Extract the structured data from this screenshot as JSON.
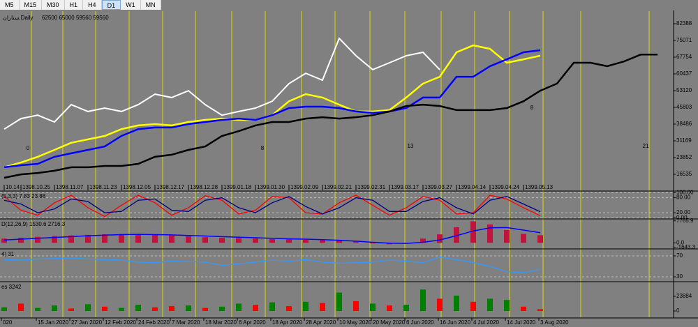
{
  "toolbar": {
    "buttons": [
      "M5",
      "M15",
      "M30",
      "H1",
      "H4",
      "D1",
      "W1",
      "MN"
    ],
    "active": 5
  },
  "time_axis": [
    "020",
    "15 Jan 2020",
    "27 Jan 2020",
    "12 Feb 2020",
    "24 Feb 2020",
    "7 Mar 2020",
    "18 Mar 2020",
    "6 Apr 2020",
    "18 Apr 2020",
    "28 Apr 2020",
    "10 May 2020",
    "20 May 2020",
    "6 Jun 2020",
    "16 Jun 2020",
    "4 Jul 2020",
    "14 Jul 2020",
    "3 Aug 2020"
  ],
  "chart_data": [
    {
      "type": "line",
      "title": "ستاران,Daily",
      "subtitle": "62500 65000 59560 59560",
      "categories": [
        "10.14",
        "1398.10.25",
        null,
        "1398.11.07",
        null,
        "1398.11.23",
        null,
        "1398.12.05",
        null,
        "1398.12.17",
        null,
        "1398.12.28",
        null,
        "1399.01.18",
        null,
        "1399.01.30",
        null,
        "1399.02.09",
        null,
        "1399.02.21",
        null,
        "1399.02.31",
        null,
        "1399.03.17",
        null,
        "1399.03.27",
        null,
        "1399.04.14",
        null,
        "1399.04.24",
        null,
        "1399.05.13",
        null,
        null,
        null,
        null,
        null,
        null,
        null,
        null
      ],
      "series": [
        {
          "color": "#ffffff",
          "values": [
            36300,
            40900,
            42400,
            39400,
            47000,
            44000,
            45500,
            44000,
            47000,
            51600,
            50100,
            53100,
            47000,
            42400,
            44000,
            45500,
            48500,
            56200,
            60700,
            57700,
            76000,
            68400,
            62300,
            65300,
            68400,
            69900,
            62300,
            null,
            null,
            null,
            null,
            null,
            null,
            null,
            null,
            null,
            null,
            null,
            null,
            null
          ]
        },
        {
          "color": "#ffff00",
          "values": [
            19600,
            21700,
            24200,
            27200,
            30300,
            31800,
            33300,
            36300,
            37900,
            38500,
            37900,
            39400,
            40300,
            40900,
            40300,
            40300,
            42400,
            48500,
            51600,
            50100,
            47000,
            44000,
            44000,
            44600,
            50100,
            56200,
            59200,
            69900,
            72900,
            71400,
            65300,
            66800,
            68400,
            null,
            null,
            null,
            null,
            null,
            null,
            null
          ]
        },
        {
          "color": "#0000ff",
          "values": [
            19600,
            20500,
            21100,
            24200,
            25700,
            27200,
            28700,
            33300,
            36300,
            37000,
            37000,
            38500,
            39400,
            40300,
            40900,
            40300,
            42400,
            45500,
            46100,
            46100,
            45500,
            44000,
            43400,
            44000,
            45500,
            50100,
            50100,
            59200,
            59200,
            63800,
            66800,
            69900,
            70800,
            null,
            null,
            null,
            null,
            null,
            null,
            null
          ]
        },
        {
          "color": "#000000",
          "values": [
            15000,
            16500,
            17100,
            18100,
            19600,
            19600,
            20200,
            20200,
            21100,
            24200,
            25100,
            27200,
            28700,
            33300,
            35400,
            37900,
            39400,
            39400,
            40900,
            41500,
            40900,
            41500,
            42400,
            44000,
            46400,
            47000,
            46400,
            44600,
            44600,
            44600,
            45500,
            48500,
            53100,
            56200,
            65300,
            65300,
            63800,
            65900,
            68900,
            68900
          ]
        }
      ],
      "annotations": [
        "0",
        "8",
        "13",
        "8",
        "21"
      ],
      "ylim": [
        9522,
        87876
      ],
      "yticks": [
        82388,
        75071,
        67754,
        60437,
        53120,
        45803,
        38486,
        31169,
        23852,
        16535
      ]
    },
    {
      "type": "line",
      "label": "(5,3,3) 7.83 23.88",
      "series": [
        {
          "color": "#ff0000",
          "values": [
            85,
            30,
            10,
            60,
            90,
            40,
            5,
            50,
            90,
            60,
            10,
            40,
            88,
            70,
            15,
            30,
            85,
            80,
            20,
            15,
            60,
            90,
            50,
            10,
            40,
            85,
            70,
            15,
            20,
            90,
            75,
            40,
            8
          ]
        },
        {
          "color": "#000080",
          "values": [
            70,
            55,
            20,
            35,
            75,
            65,
            20,
            25,
            70,
            75,
            30,
            25,
            70,
            80,
            40,
            20,
            60,
            85,
            45,
            15,
            40,
            80,
            70,
            25,
            25,
            65,
            80,
            40,
            15,
            70,
            85,
            55,
            24
          ]
        }
      ],
      "ylim": [
        -2,
        104
      ],
      "grid": true,
      "yticks": [
        {
          "value": 100,
          "label": "100.00"
        },
        {
          "value": 80,
          "label": "80.00"
        },
        {
          "value": 20,
          "label": "20.00"
        },
        {
          "value": 0,
          "label": "0.00"
        }
      ]
    },
    {
      "type": "bar",
      "label": "D(12,26,9) 1530.6 2716.3",
      "color": "#c0143c",
      "values": [
        1500,
        1800,
        2100,
        2400,
        2600,
        2800,
        3000,
        3100,
        3000,
        2800,
        2600,
        2300,
        2000,
        1800,
        1700,
        1500,
        1300,
        1200,
        1100,
        1000,
        800,
        400,
        -200,
        -500,
        -100,
        1500,
        3000,
        5500,
        7600,
        6500,
        4500,
        3200,
        2700
      ],
      "signal": {
        "color": "#0000ff",
        "values": [
          1000,
          1300,
          1600,
          1900,
          2200,
          2500,
          2700,
          2900,
          3000,
          2900,
          2800,
          2600,
          2400,
          2200,
          2000,
          1800,
          1600,
          1400,
          1300,
          1100,
          900,
          600,
          200,
          -100,
          -200,
          200,
          1000,
          2500,
          4200,
          5300,
          5400,
          4500,
          3600
        ]
      },
      "ylim": [
        -1900,
        8200
      ],
      "yticks": [
        7765.9,
        {
          "value": 0,
          "label": "0.0"
        },
        -1643.3
      ]
    },
    {
      "type": "line",
      "label": "4) 31",
      "series": [
        {
          "color": "#3399ff",
          "values": [
            63,
            62,
            64,
            65,
            66,
            64,
            63,
            62,
            58,
            57,
            60,
            59,
            58,
            52,
            55,
            58,
            62,
            60,
            63,
            58,
            56,
            57,
            58,
            62,
            60,
            57,
            68,
            63,
            57,
            50,
            40,
            38,
            44
          ]
        }
      ],
      "ylim": [
        22,
        82
      ],
      "grid": true,
      "yticks": [
        70,
        30
      ]
    },
    {
      "type": "bar",
      "label": "es 3242",
      "values": [
        6000,
        12000,
        5000,
        9000,
        4000,
        11000,
        7000,
        5000,
        10000,
        6000,
        8000,
        9000,
        5000,
        7000,
        12000,
        10000,
        14000,
        8000,
        15000,
        13000,
        30000,
        16000,
        12000,
        9000,
        10000,
        35000,
        20000,
        25000,
        15000,
        20000,
        18000,
        7000,
        3000
      ],
      "colors": [
        "#008000",
        "#ff0000",
        "#008000",
        "#008000",
        "#ff0000",
        "#008000",
        "#ff0000",
        "#008000",
        "#008000",
        "#ff0000",
        "#ff0000",
        "#008000",
        "#ff0000",
        "#008000",
        "#008000",
        "#ff0000",
        "#008000",
        "#ff0000",
        "#008000",
        "#ff0000",
        "#008000",
        "#ff0000",
        "#008000",
        "#ff0000",
        "#008000",
        "#008000",
        "#ff0000",
        "#008000",
        "#ff0000",
        "#008000",
        "#008000",
        "#ff0000",
        "#ff0000"
      ],
      "ylim": [
        -10234,
        46624
      ],
      "yticks": [
        23884,
        0
      ]
    }
  ]
}
